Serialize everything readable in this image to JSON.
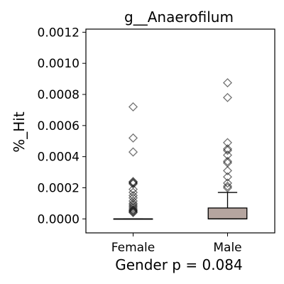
{
  "chart_data": {
    "type": "box",
    "title": "g__Anaerofilum",
    "xlabel": "Gender p = 0.084",
    "ylabel": "%_Hit",
    "ylim": [
      -9e-05,
      0.00122
    ],
    "yticks": [
      0.0,
      0.0002,
      0.0004,
      0.0006,
      0.0008,
      0.001,
      0.0012
    ],
    "ytick_labels": [
      "0.0000",
      "0.0002",
      "0.0004",
      "0.0006",
      "0.0008",
      "0.0010",
      "0.0012"
    ],
    "grid": false,
    "categories": [
      "Female",
      "Male"
    ],
    "boxes": [
      {
        "name": "Female",
        "q1": 0.0,
        "median": 0.0,
        "q3": 0.0,
        "whisker_low": 0.0,
        "whisker_high": 0.0,
        "fill": "#d9c6bd",
        "outliers": [
          0.00072,
          0.00052,
          0.00043,
          0.00024,
          0.000235,
          0.00023,
          0.000225,
          0.00019,
          0.00017,
          0.00015,
          0.000135,
          0.000115,
          0.0001,
          9e-05,
          8e-05,
          7e-05,
          6e-05,
          5.5e-05,
          5e-05,
          4.5e-05,
          4e-05
        ]
      },
      {
        "name": "Male",
        "q1": 0.0,
        "median": 0.0,
        "q3": 7e-05,
        "whisker_low": 0.0,
        "whisker_high": 0.00017,
        "fill": "#b5a59f",
        "outliers": [
          0.000875,
          0.00078,
          0.00049,
          0.00045,
          0.00044,
          0.00041,
          0.00037,
          0.00036,
          0.00031,
          0.00027,
          0.00023,
          0.00021,
          0.0002
        ]
      }
    ]
  }
}
